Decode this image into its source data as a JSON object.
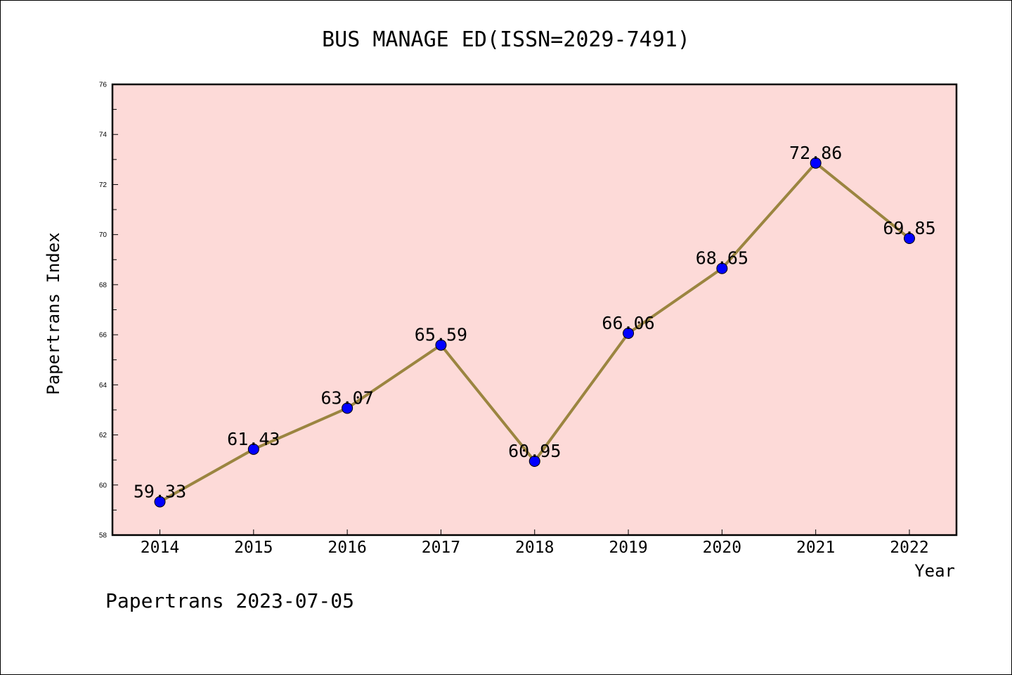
{
  "chart_data": {
    "type": "line",
    "title": "BUS MANAGE ED(ISSN=2029-7491)",
    "xlabel": "Year",
    "ylabel": "Papertrans Index",
    "categories": [
      "2014",
      "2015",
      "2016",
      "2017",
      "2018",
      "2019",
      "2020",
      "2021",
      "2022"
    ],
    "values": [
      59.33,
      61.43,
      63.07,
      65.59,
      60.95,
      66.06,
      68.65,
      72.86,
      69.85
    ],
    "data_labels": [
      "59.33",
      "61.43",
      "63.07",
      "65.59",
      "60.95",
      "66.06",
      "68.65",
      "72.86",
      "69.85"
    ],
    "ylim": [
      58,
      76
    ],
    "y_ticks": [
      "58",
      "60",
      "62",
      "64",
      "66",
      "68",
      "70",
      "72",
      "74",
      "76"
    ],
    "grid": false,
    "legend": "none"
  },
  "footer": "Papertrans 2023-07-05",
  "colors": {
    "plot_background": "#fddad8",
    "line": "#9b8540",
    "marker": "#0000ff",
    "axis": "#000000"
  }
}
